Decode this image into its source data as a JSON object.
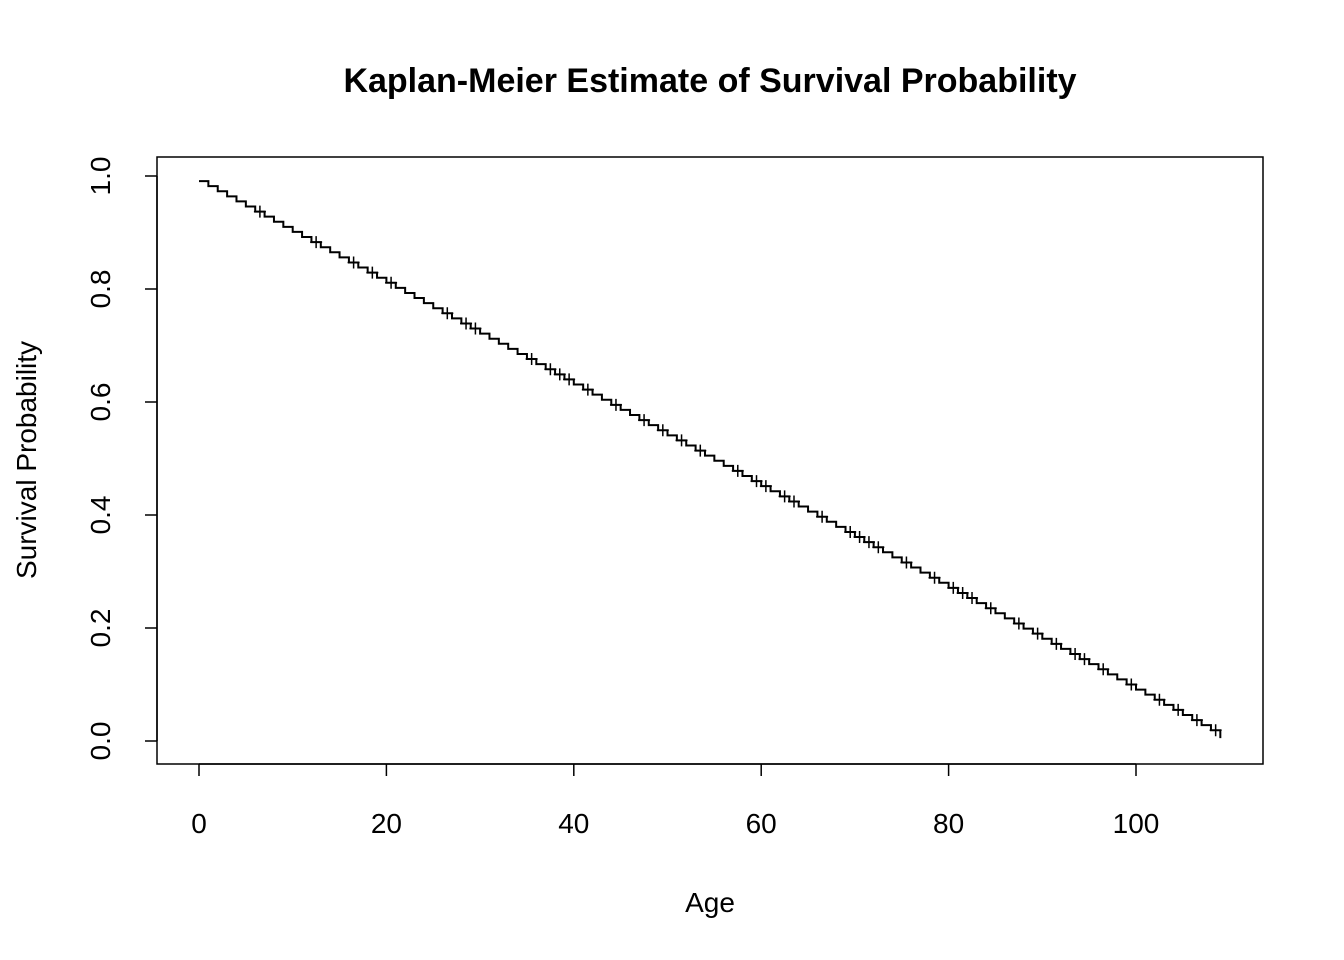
{
  "chart_data": {
    "type": "line",
    "subtype": "kaplan-meier-step",
    "title": "Kaplan-Meier Estimate of Survival Probability",
    "xlabel": "Age",
    "ylabel": "Survival Probability",
    "xlim": [
      0,
      109
    ],
    "ylim": [
      0,
      1
    ],
    "xticks": [
      0,
      20,
      40,
      60,
      80,
      100
    ],
    "xtick_labels": [
      "0",
      "20",
      "40",
      "60",
      "80",
      "100"
    ],
    "yticks": [
      0,
      0.2,
      0.4,
      0.6,
      0.8,
      1.0
    ],
    "ytick_labels": [
      "0.0",
      "0.2",
      "0.4",
      "0.6",
      "0.8",
      "1.0"
    ],
    "grid": false,
    "legend": "none",
    "censor_marks": true,
    "colors": {
      "line": "#000000",
      "background": "#ffffff"
    },
    "series": [
      {
        "x": [
          0,
          1,
          2,
          3,
          4,
          5,
          6,
          7,
          8,
          9,
          10,
          11,
          12,
          13,
          14,
          15,
          16,
          17,
          18,
          19,
          20,
          21,
          22,
          23,
          24,
          25,
          26,
          27,
          28,
          29,
          30,
          31,
          32,
          33,
          34,
          35,
          36,
          37,
          38,
          39,
          40,
          41,
          42,
          43,
          44,
          45,
          46,
          47,
          48,
          49,
          50,
          51,
          52,
          53,
          54,
          55,
          56,
          57,
          58,
          59,
          60,
          61,
          62,
          63,
          64,
          65,
          66,
          67,
          68,
          69,
          70,
          71,
          72,
          73,
          74,
          75,
          76,
          77,
          78,
          79,
          80,
          81,
          82,
          83,
          84,
          85,
          86,
          87,
          88,
          89,
          90,
          91,
          92,
          93,
          94,
          95,
          96,
          97,
          98,
          99,
          100,
          101,
          102,
          103,
          104,
          105,
          106,
          107,
          108,
          109
        ],
        "y": [
          0.991,
          0.982,
          0.973,
          0.964,
          0.955,
          0.946,
          0.937,
          0.928,
          0.919,
          0.91,
          0.901,
          0.892,
          0.883,
          0.874,
          0.865,
          0.856,
          0.847,
          0.838,
          0.829,
          0.82,
          0.811,
          0.802,
          0.793,
          0.784,
          0.775,
          0.766,
          0.757,
          0.748,
          0.739,
          0.73,
          0.721,
          0.712,
          0.703,
          0.694,
          0.685,
          0.676,
          0.667,
          0.658,
          0.649,
          0.64,
          0.631,
          0.622,
          0.613,
          0.604,
          0.595,
          0.586,
          0.577,
          0.568,
          0.559,
          0.55,
          0.541,
          0.532,
          0.523,
          0.514,
          0.505,
          0.496,
          0.487,
          0.478,
          0.469,
          0.46,
          0.451,
          0.442,
          0.433,
          0.424,
          0.415,
          0.406,
          0.397,
          0.388,
          0.379,
          0.37,
          0.361,
          0.352,
          0.343,
          0.334,
          0.325,
          0.316,
          0.307,
          0.298,
          0.289,
          0.28,
          0.271,
          0.262,
          0.253,
          0.244,
          0.235,
          0.226,
          0.217,
          0.208,
          0.199,
          0.19,
          0.181,
          0.172,
          0.163,
          0.154,
          0.145,
          0.136,
          0.127,
          0.118,
          0.109,
          0.1,
          0.091,
          0.082,
          0.073,
          0.064,
          0.055,
          0.046,
          0.037,
          0.028,
          0.019,
          0.005
        ],
        "censor_x": [
          6,
          12,
          16,
          18,
          20,
          26,
          28,
          29,
          35,
          37,
          38,
          39,
          41,
          44,
          47,
          49,
          51,
          53,
          57,
          59,
          60,
          62,
          63,
          66,
          69,
          70,
          71,
          72,
          75,
          78,
          80,
          81,
          82,
          84,
          87,
          89,
          91,
          93,
          94,
          96,
          99,
          102,
          104,
          106,
          108
        ]
      }
    ]
  }
}
